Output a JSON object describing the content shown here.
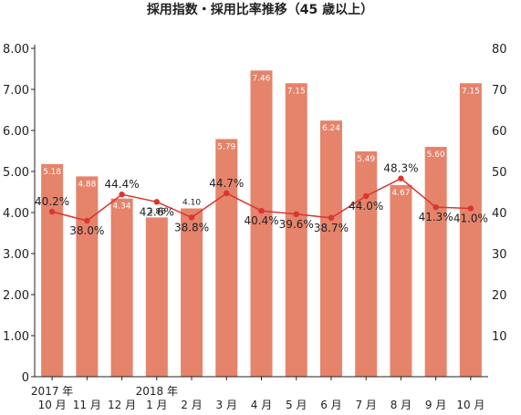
{
  "chart_data": {
    "type": "bar",
    "title": "採用指数・採用比率推移（45 歳以上）",
    "categories": [
      "10 月",
      "11 月",
      "12 月",
      "1 月",
      "2 月",
      "3 月",
      "4 月",
      "5 月",
      "6 月",
      "7 月",
      "8 月",
      "9 月",
      "10 月"
    ],
    "category_year_labels": [
      "2017 年",
      "",
      "",
      "2018 年",
      "",
      "",
      "",
      "",
      "",
      "",
      "",
      "",
      ""
    ],
    "series": [
      {
        "type": "bar",
        "axis": "left",
        "color": "#e5836b",
        "values": [
          5.18,
          4.88,
          4.34,
          3.88,
          4.1,
          5.79,
          7.46,
          7.15,
          6.24,
          5.49,
          4.67,
          5.6,
          7.15
        ],
        "value_labels": [
          "5.18",
          "4.88",
          "4.34",
          "3.88",
          "4.10",
          "5.79",
          "7.46",
          "7.15",
          "6.24",
          "5.49",
          "4.67",
          "5.60",
          "7.15"
        ]
      },
      {
        "type": "line",
        "axis": "right",
        "color": "#d8362e",
        "values": [
          40.2,
          38.0,
          44.4,
          42.6,
          38.8,
          44.7,
          40.4,
          39.6,
          38.7,
          44.0,
          48.3,
          41.3,
          41.0
        ],
        "value_labels": [
          "40.2%",
          "38.0%",
          "44.4%",
          "42.6%",
          "38.8%",
          "44.7%",
          "40.4%",
          "39.6%",
          "38.7%",
          "44.0%",
          "48.3%",
          "41.3%",
          "41.0%"
        ]
      }
    ],
    "left_axis": {
      "ylim": [
        0,
        8
      ],
      "ticks": [
        0,
        1,
        2,
        3,
        4,
        5,
        6,
        7,
        8
      ],
      "tick_labels": [
        "0",
        "1.00",
        "2.00",
        "3.00",
        "4.00",
        "5.00",
        "6.00",
        "7.00",
        "8.00"
      ]
    },
    "right_axis": {
      "ylim": [
        0,
        80
      ],
      "ticks": [
        10,
        20,
        30,
        40,
        50,
        60,
        70,
        80
      ],
      "tick_labels": [
        "10",
        "20",
        "30",
        "40",
        "50",
        "60",
        "70",
        "80"
      ]
    },
    "grid": false
  }
}
